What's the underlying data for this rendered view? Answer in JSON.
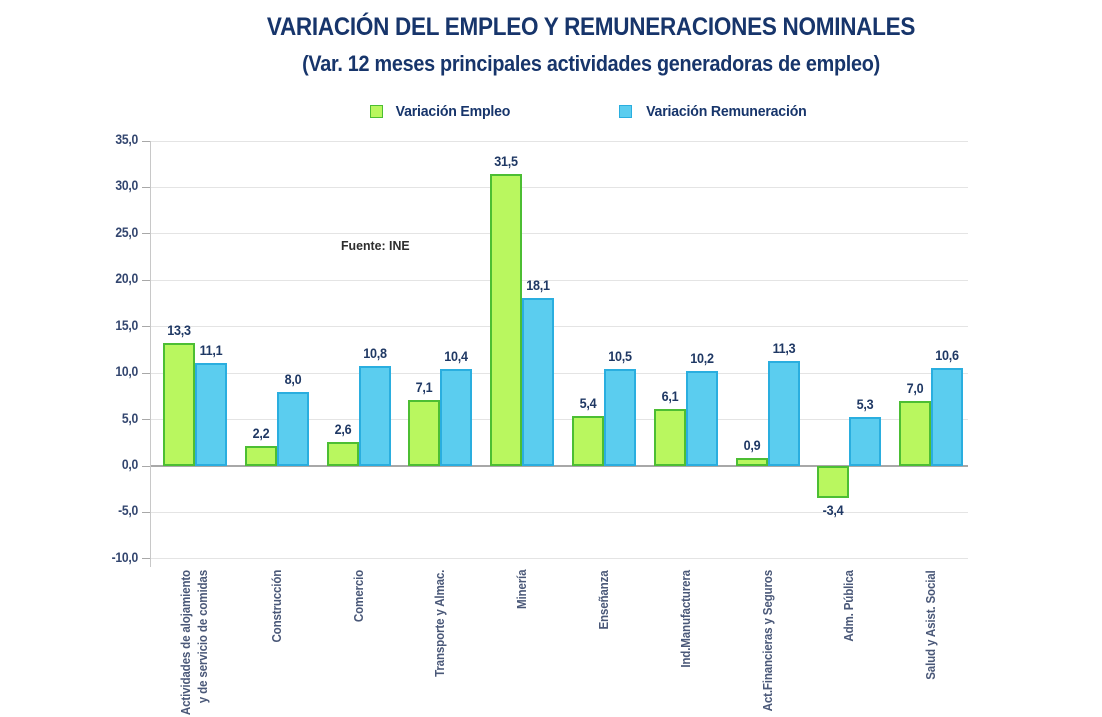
{
  "chart_data": {
    "type": "bar",
    "title": "VARIACIÓN DEL EMPLEO Y REMUNERACIONES NOMINALES",
    "subtitle": "(Var. 12 meses principales actividades generadoras de empleo)",
    "source_note": "Fuente: INE",
    "legend_position": "top",
    "grid": true,
    "categories": [
      "Actividades de alojamiento\ny de servicio de comidas",
      "Construcción",
      "Comercio",
      "Transporte y Almac.",
      "Minería",
      "Enseñanza",
      "Ind.Manufacturera",
      "Act.Financieras y Seguros",
      "Adm. Pública",
      "Salud y Asist. Social"
    ],
    "series": [
      {
        "name": "Variación Empleo",
        "values": [
          13.3,
          2.2,
          2.6,
          7.1,
          31.5,
          5.4,
          6.1,
          0.9,
          -3.4,
          7.0
        ],
        "fill": "#B9F75F",
        "border": "#4CBE33"
      },
      {
        "name": "Variación Remuneración",
        "values": [
          11.1,
          8.0,
          10.8,
          10.4,
          18.1,
          10.5,
          10.2,
          11.3,
          5.3,
          10.6
        ],
        "fill": "#5BCDEF",
        "border": "#2AAEDF"
      }
    ],
    "y_axis": {
      "min": -10,
      "max": 35,
      "step": 5,
      "decimal_separator": ",",
      "tick_labels": [
        "35,0",
        "30,0",
        "25,0",
        "20,0",
        "15,0",
        "10,0",
        "5,0",
        "0,0",
        "-5,0",
        "-10,0"
      ]
    },
    "colors": {
      "title_text": "#17356B",
      "data_label_text": "#1F3864",
      "tick_label_text": "#33466F",
      "category_label_text": "#4A5878",
      "grid_line": "#E4E4E4",
      "zero_line": "#A8A8A8",
      "axis_line": "#C8C8C8",
      "source_text": "#2E2E2E"
    }
  }
}
